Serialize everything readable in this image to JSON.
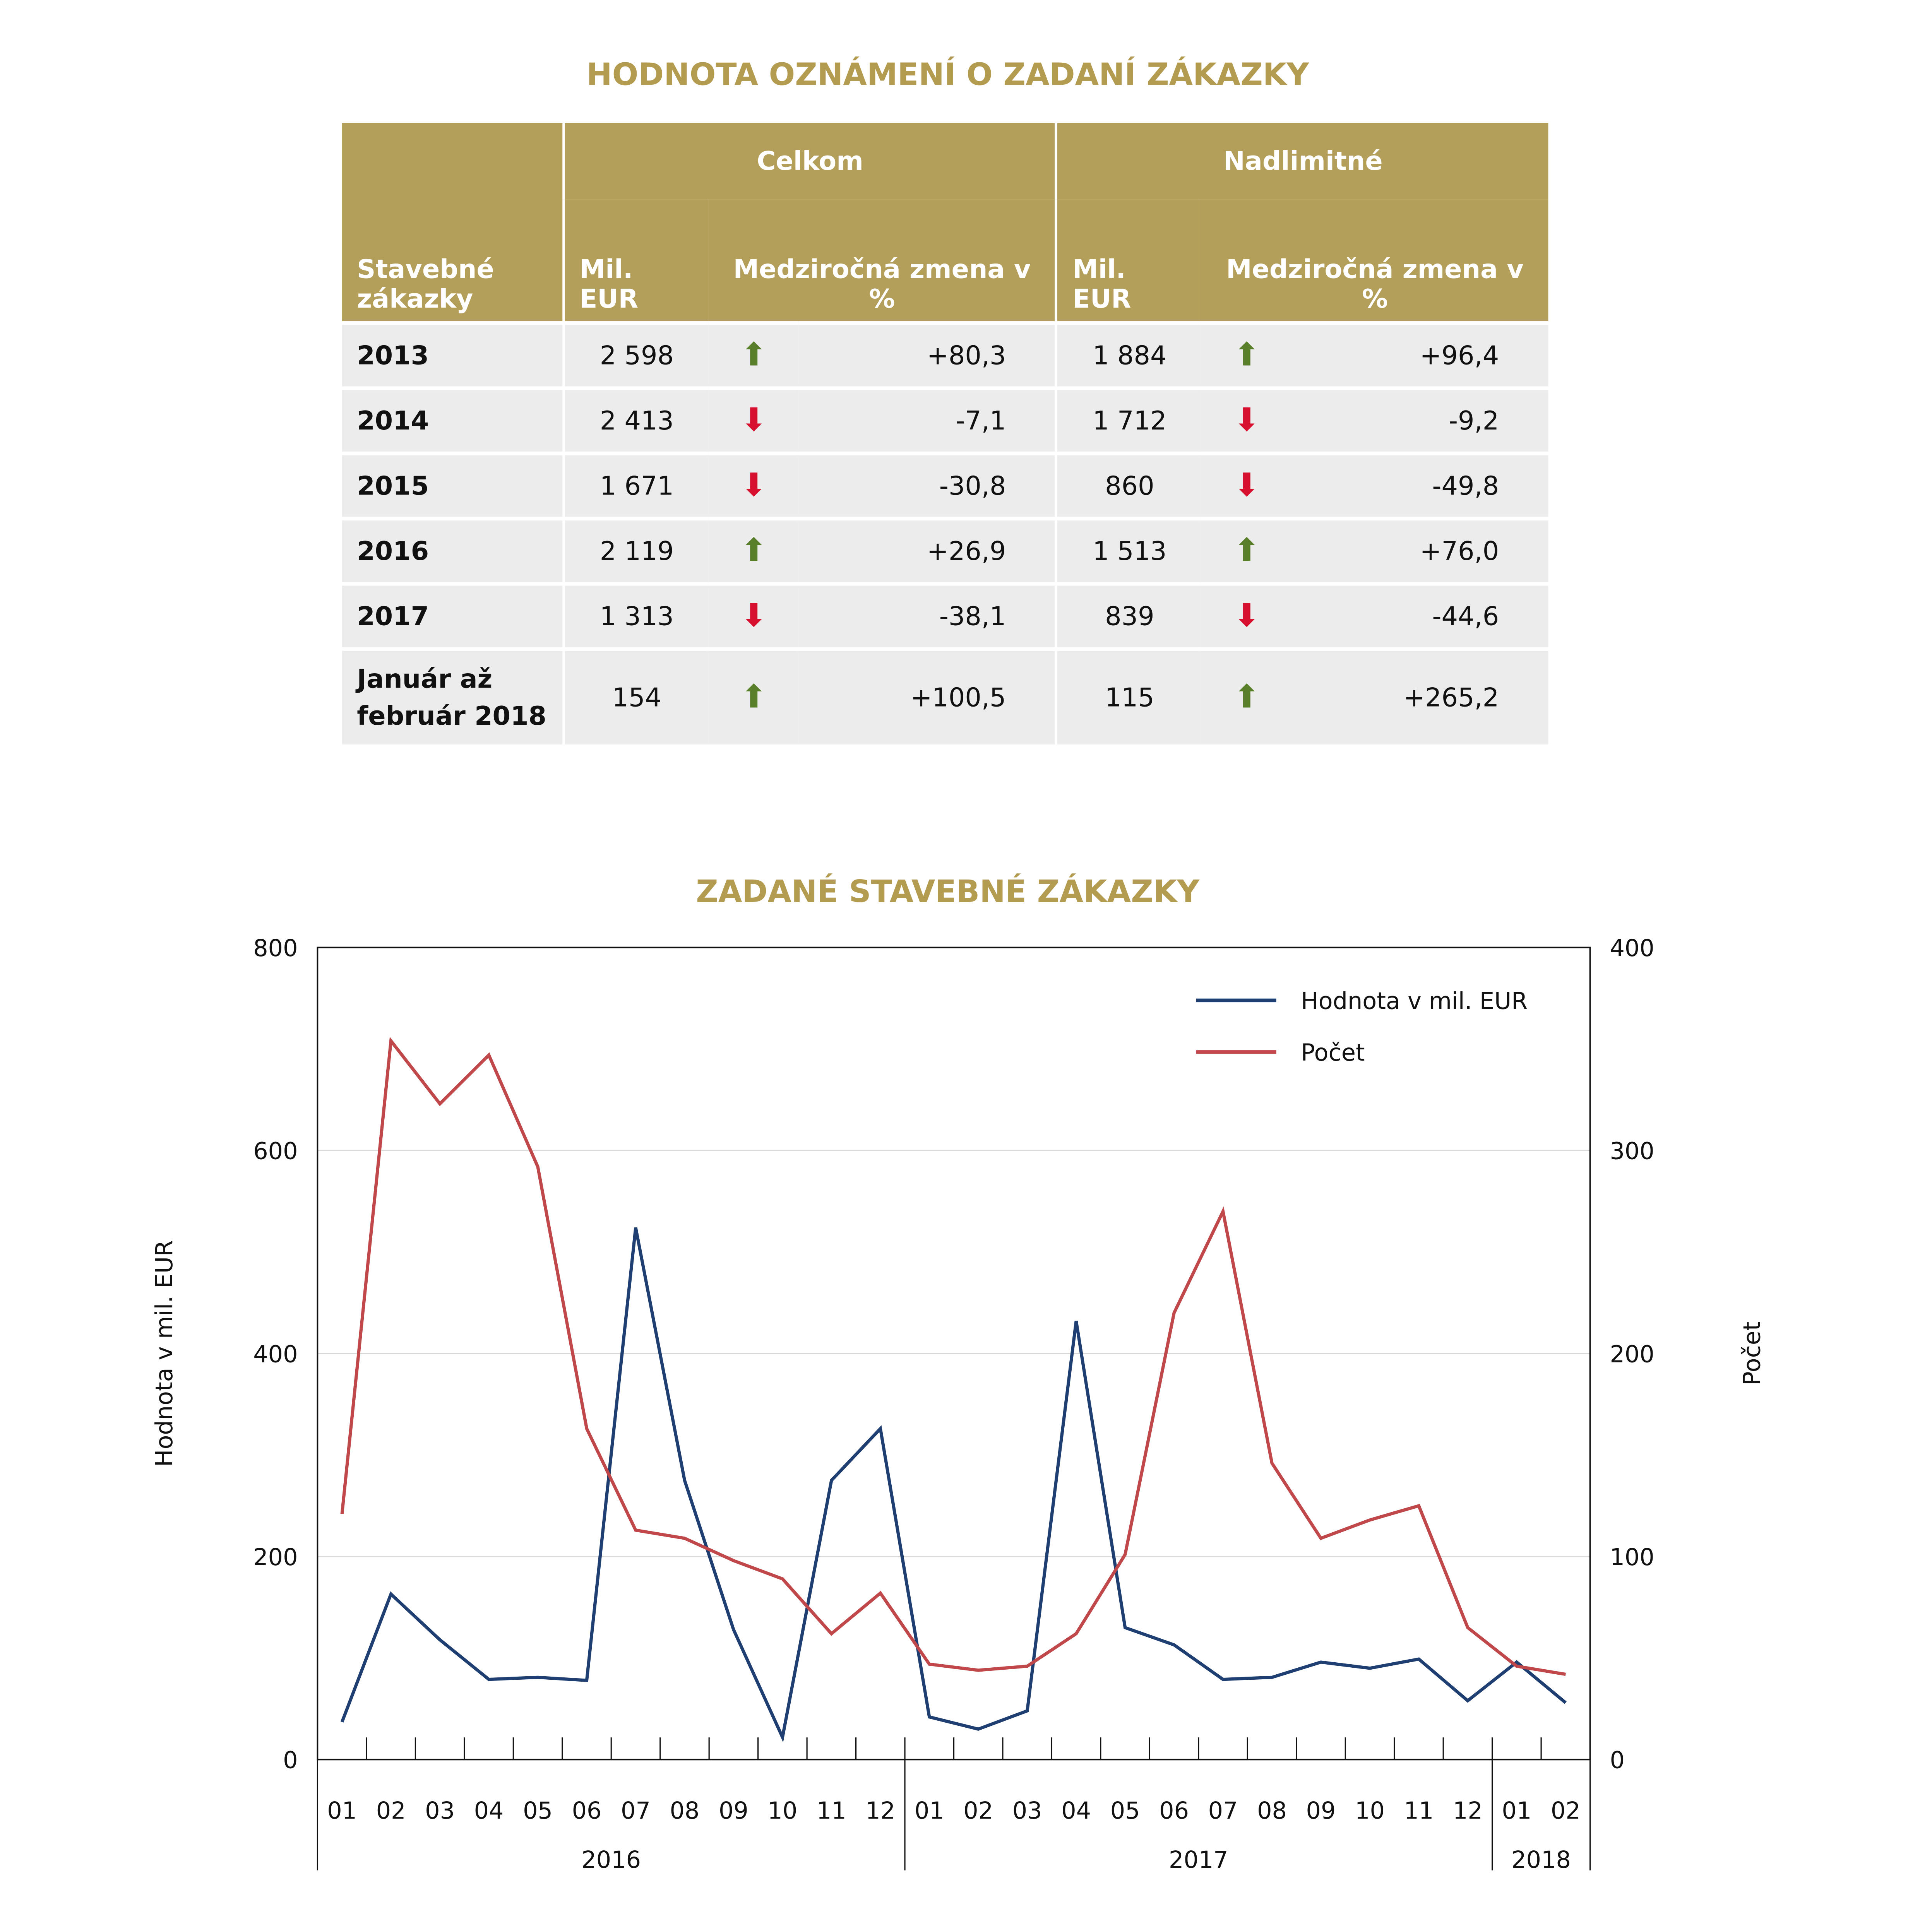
{
  "table_title": "HODNOTA OZNÁMENÍ O ZADANÍ ZÁKAZKY",
  "table": {
    "group_headers": [
      "Celkom",
      "Nadlimitné"
    ],
    "row_header": "Stavebné zákazky",
    "col_value": "Mil. EUR",
    "col_change": "Medziročná zmena v %",
    "rows": [
      {
        "label": "2013",
        "c_val": "2 598",
        "c_dir": "up",
        "c_pct": "+80,3",
        "n_val": "1 884",
        "n_dir": "up",
        "n_pct": "+96,4"
      },
      {
        "label": "2014",
        "c_val": "2 413",
        "c_dir": "down",
        "c_pct": "-7,1",
        "n_val": "1 712",
        "n_dir": "down",
        "n_pct": "-9,2"
      },
      {
        "label": "2015",
        "c_val": "1 671",
        "c_dir": "down",
        "c_pct": "-30,8",
        "n_val": "860",
        "n_dir": "down",
        "n_pct": "-49,8"
      },
      {
        "label": "2016",
        "c_val": "2 119",
        "c_dir": "up",
        "c_pct": "+26,9",
        "n_val": "1 513",
        "n_dir": "up",
        "n_pct": "+76,0"
      },
      {
        "label": "2017",
        "c_val": "1 313",
        "c_dir": "down",
        "c_pct": "-38,1",
        "n_val": "839",
        "n_dir": "down",
        "n_pct": "-44,6"
      },
      {
        "label": "Január až február 2018",
        "c_val": "154",
        "c_dir": "up",
        "c_pct": "+100,5",
        "n_val": "115",
        "n_dir": "up",
        "n_pct": "+265,2"
      }
    ],
    "colors": {
      "header": "#b39f5a",
      "up": "#5a7f2a",
      "down": "#d7102f"
    }
  },
  "chart_data": {
    "type": "line",
    "title": "ZADANÉ STAVEBNÉ ZÁKAZKY",
    "ylabel": "Hodnota v mil. EUR",
    "y2label": "Počet",
    "ylim": [
      0,
      800
    ],
    "yticks": [
      0,
      200,
      400,
      600,
      800
    ],
    "y2lim": [
      0,
      400
    ],
    "y2ticks": [
      0,
      100,
      200,
      300,
      400
    ],
    "categories": [
      "01",
      "02",
      "03",
      "04",
      "05",
      "06",
      "07",
      "08",
      "09",
      "10",
      "11",
      "12",
      "01",
      "02",
      "03",
      "04",
      "05",
      "06",
      "07",
      "08",
      "09",
      "10",
      "11",
      "12",
      "01",
      "02"
    ],
    "years": [
      {
        "label": "2016",
        "months": 12
      },
      {
        "label": "2017",
        "months": 12
      },
      {
        "label": "2018",
        "months": 2
      }
    ],
    "grid": true,
    "legend": "top-right",
    "series": [
      {
        "name": "Hodnota v mil. EUR",
        "axis": "left",
        "color": "#1f3f73",
        "values": [
          37,
          163,
          118,
          79,
          81,
          78,
          524,
          275,
          128,
          22,
          275,
          326,
          42,
          30,
          48,
          432,
          130,
          113,
          79,
          81,
          96,
          90,
          99,
          58,
          96,
          56
        ]
      },
      {
        "name": "Počet",
        "axis": "right",
        "color": "#c0474a",
        "values": [
          121,
          354,
          323,
          347,
          292,
          163,
          113,
          109,
          98,
          89,
          62,
          82,
          47,
          44,
          46,
          62,
          101,
          220,
          270,
          146,
          109,
          118,
          125,
          65,
          46,
          42
        ]
      }
    ]
  }
}
